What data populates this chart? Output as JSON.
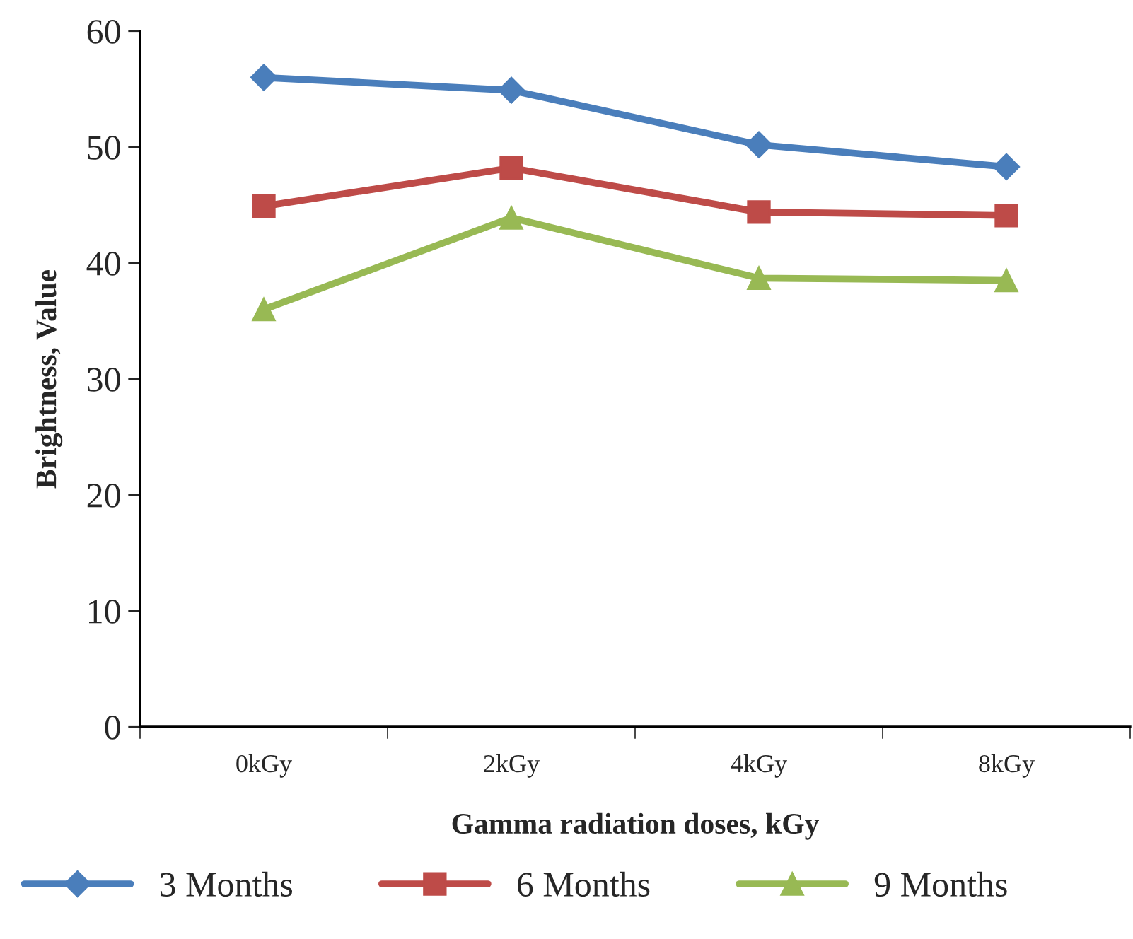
{
  "chart_data": {
    "type": "line",
    "xlabel": "Gamma radiation doses, kGy",
    "ylabel": "Brightness, Value",
    "categories": [
      "0kGy",
      "2kGy",
      "4kGy",
      "8kGy"
    ],
    "series": [
      {
        "name": "3 Months",
        "color": "#4a7ebb",
        "marker": "diamond",
        "values": [
          56.0,
          54.9,
          50.2,
          48.3
        ]
      },
      {
        "name": "6 Months",
        "color": "#be4b48",
        "marker": "square",
        "values": [
          44.9,
          48.2,
          44.4,
          44.1
        ]
      },
      {
        "name": "9 Months",
        "color": "#98b954",
        "marker": "triangle",
        "values": [
          36.0,
          43.9,
          38.7,
          38.5
        ]
      }
    ],
    "ylim": [
      0,
      60
    ],
    "yticks": [
      0,
      10,
      20,
      30,
      40,
      50,
      60
    ],
    "grid": false,
    "legend": "bottom",
    "line_style": "solid"
  }
}
